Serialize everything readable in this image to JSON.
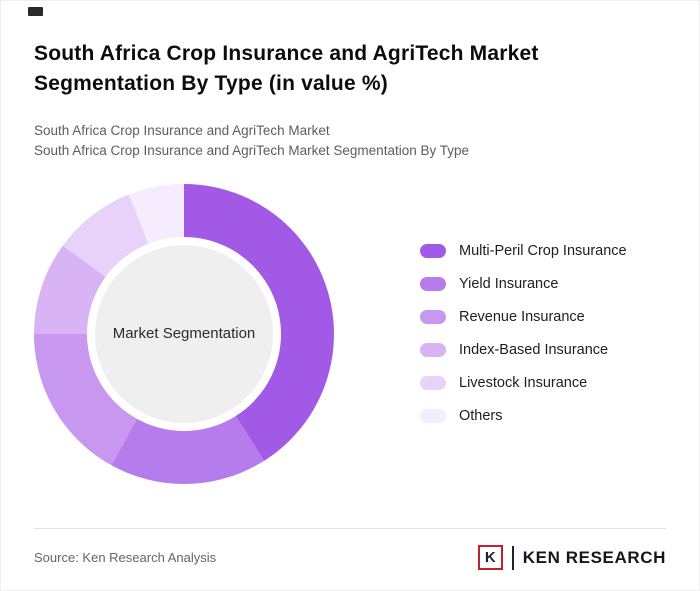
{
  "page": {
    "title": "South Africa Crop Insurance and AgriTech Market Segmentation By Type (in value %)",
    "subtitle1": "South Africa Crop Insurance and AgriTech Market",
    "subtitle2": "South Africa Crop Insurance and AgriTech Market Segmentation By Type",
    "source": "Source: Ken Research Analysis",
    "logo": {
      "letter": "K",
      "text": "KEN RESEARCH"
    }
  },
  "chart_data": {
    "type": "pie",
    "donut": true,
    "title": "South Africa Crop Insurance and AgriTech Market Segmentation By Type (in value %)",
    "center_label": "Market Segmentation",
    "legend_position": "right",
    "unit": "%",
    "start_angle_deg": 0,
    "direction": "clockwise",
    "categories": [
      "Multi-Peril Crop Insurance",
      "Yield Insurance",
      "Revenue Insurance",
      "Index-Based Insurance",
      "Livestock Insurance",
      "Others"
    ],
    "values": [
      41,
      17,
      17,
      10,
      9,
      6
    ],
    "colors": [
      "#a259e6",
      "#b77ceb",
      "#c897f0",
      "#d9b4f5",
      "#e8d2fa",
      "#f5ecfd"
    ],
    "center_bg": "#efefef",
    "accent_red": "#c41e30"
  }
}
